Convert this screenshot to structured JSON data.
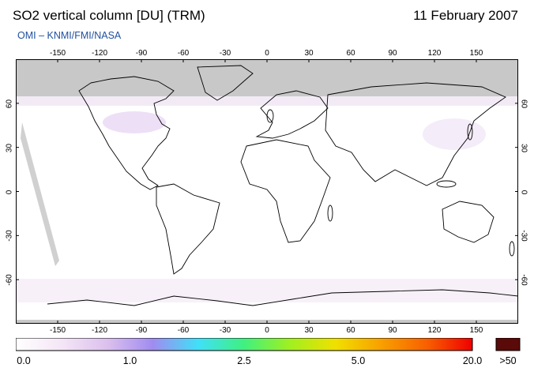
{
  "title": "SO2 vertical column [DU] (TRM)",
  "date": "11 February 2007",
  "credit": "OMI  –  KNMI/FMI/NASA",
  "map": {
    "lon_ticks": [
      "-150",
      "-120",
      "-90",
      "-60",
      "-30",
      "0",
      "30",
      "60",
      "90",
      "120",
      "150"
    ],
    "lon_values": [
      -150,
      -120,
      -90,
      -60,
      -30,
      0,
      30,
      60,
      90,
      120,
      150
    ],
    "lat_ticks": [
      "60",
      "30",
      "0",
      "-30",
      "-60"
    ],
    "lat_values": [
      60,
      30,
      0,
      -30,
      -60
    ],
    "lon_range": [
      -180,
      180
    ],
    "lat_range": [
      -90,
      90
    ],
    "polar_nodata_color": "#c8c8c8",
    "coast_color": "#000000"
  },
  "colorbar": {
    "labels": [
      "0.0",
      "1.0",
      "2.5",
      "5.0",
      "20.0"
    ],
    "overflow_label": ">50",
    "overflow_color": "#5a0a08",
    "stops": [
      "#ffffff",
      "#f4e6f6",
      "#dcc0ee",
      "#a08cf0",
      "#40e0f8",
      "#40f080",
      "#a0f020",
      "#f0e000",
      "#f8a000",
      "#f86000",
      "#f00000"
    ]
  }
}
